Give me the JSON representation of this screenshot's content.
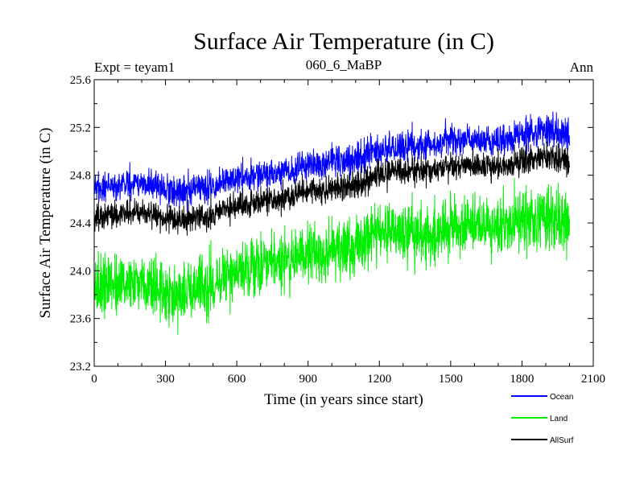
{
  "chart_data": {
    "type": "line",
    "title": "Surface Air Temperature (in C)",
    "subtitle_left": "Expt = teyam1",
    "subtitle_center": "060_6_MaBP",
    "subtitle_right": "Ann",
    "xlabel": "Time (in years since start)",
    "ylabel": "Surface Air Temperature (in C)",
    "xlim": [
      0,
      2100
    ],
    "ylim": [
      23.2,
      25.6
    ],
    "xticks": [
      0,
      300,
      600,
      900,
      1200,
      1500,
      1800,
      2100
    ],
    "yticks": [
      23.2,
      23.6,
      24.0,
      24.4,
      24.8,
      25.2,
      25.6
    ],
    "xtick_labels": [
      "0",
      "300",
      "600",
      "900",
      "1200",
      "1500",
      "1800",
      "2100"
    ],
    "ytick_labels": [
      "23.2",
      "23.6",
      "24.0",
      "24.4",
      "24.8",
      "25.2",
      "25.6"
    ],
    "legend_position": "bottom-right-outside",
    "series": [
      {
        "name": "Ocean",
        "color": "#0000ff",
        "years": [
          0,
          100,
          200,
          300,
          400,
          500,
          600,
          700,
          800,
          900,
          1000,
          1100,
          1200,
          1300,
          1400,
          1500,
          1600,
          1700,
          1800,
          1900,
          2000
        ],
        "trend": [
          24.68,
          24.72,
          24.74,
          24.68,
          24.66,
          24.72,
          24.78,
          24.8,
          24.84,
          24.88,
          24.92,
          24.94,
          25.0,
          25.04,
          25.06,
          25.08,
          25.1,
          25.08,
          25.14,
          25.18,
          25.14
        ],
        "noise_amplitude": 0.1
      },
      {
        "name": "Land",
        "color": "#00ee00",
        "years": [
          0,
          100,
          200,
          300,
          400,
          500,
          600,
          700,
          800,
          900,
          1000,
          1100,
          1200,
          1300,
          1400,
          1500,
          1600,
          1700,
          1800,
          1900,
          2000
        ],
        "trend": [
          23.86,
          23.9,
          23.92,
          23.82,
          23.8,
          23.9,
          24.0,
          24.06,
          24.1,
          24.14,
          24.2,
          24.22,
          24.3,
          24.34,
          24.32,
          24.36,
          24.38,
          24.36,
          24.44,
          24.44,
          24.4
        ],
        "noise_amplitude": 0.2
      },
      {
        "name": "AllSurf",
        "color": "#000000",
        "years": [
          0,
          100,
          200,
          300,
          400,
          500,
          600,
          700,
          800,
          900,
          1000,
          1100,
          1200,
          1300,
          1400,
          1500,
          1600,
          1700,
          1800,
          1900,
          2000
        ],
        "trend": [
          24.44,
          24.48,
          24.5,
          24.44,
          24.42,
          24.48,
          24.54,
          24.58,
          24.62,
          24.66,
          24.7,
          24.72,
          24.8,
          24.84,
          24.84,
          24.86,
          24.88,
          24.86,
          24.92,
          24.96,
          24.92
        ],
        "noise_amplitude": 0.09
      }
    ]
  }
}
